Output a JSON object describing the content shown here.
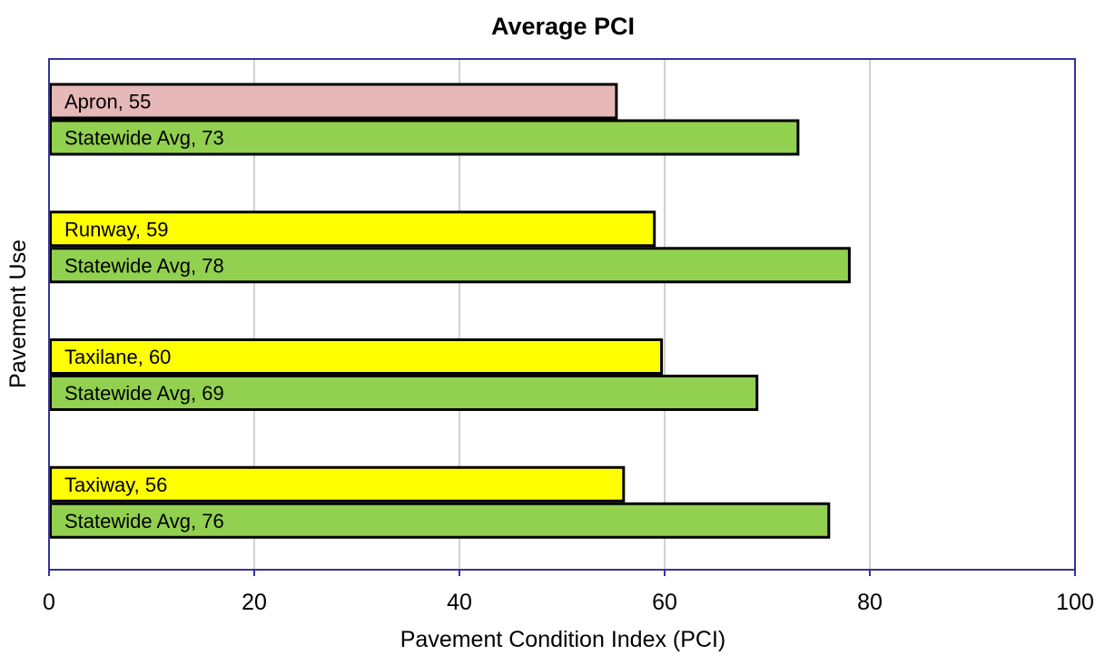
{
  "chart_data": {
    "type": "bar",
    "orientation": "horizontal",
    "title": "Average PCI",
    "xlabel": "Pavement Condition Index (PCI)",
    "ylabel": "Pavement Use",
    "xlim": [
      0,
      100
    ],
    "xticks": [
      0,
      20,
      40,
      60,
      80,
      100
    ],
    "grid": "vertical",
    "legend": "none",
    "groups": [
      {
        "name": "Apron",
        "bars": [
          {
            "label": "Apron, 55",
            "value": 55.3,
            "color": "#e6b8b7"
          },
          {
            "label": "Statewide Avg, 73",
            "value": 73,
            "color": "#92d050"
          }
        ]
      },
      {
        "name": "Runway",
        "bars": [
          {
            "label": "Runway, 59",
            "value": 59,
            "color": "#ffff00"
          },
          {
            "label": "Statewide Avg, 78",
            "value": 78,
            "color": "#92d050"
          }
        ]
      },
      {
        "name": "Taxilane",
        "bars": [
          {
            "label": "Taxilane, 60",
            "value": 59.7,
            "color": "#ffff00"
          },
          {
            "label": "Statewide Avg, 69",
            "value": 69,
            "color": "#92d050"
          }
        ]
      },
      {
        "name": "Taxiway",
        "bars": [
          {
            "label": "Taxiway, 56",
            "value": 56,
            "color": "#ffff00"
          },
          {
            "label": "Statewide Avg, 76",
            "value": 76,
            "color": "#92d050"
          }
        ]
      }
    ],
    "colors": {
      "frame": "#3333a0",
      "grid": "#a6a6a6",
      "bar_outline": "#000000"
    }
  }
}
